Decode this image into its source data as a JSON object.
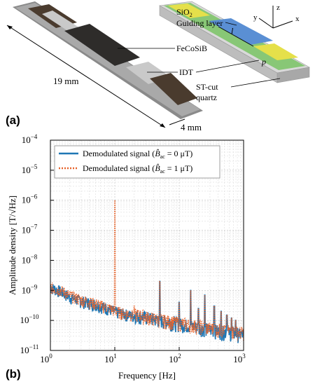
{
  "panel_a": {
    "label": "(a)",
    "callouts": {
      "sio2": "SiO",
      "sio2_sub": "2",
      "guiding": "Guiding layer",
      "fecosib": "FeCoSiB",
      "idt": "IDT",
      "stcut": "ST-cut",
      "quartz": "quartz"
    },
    "dim_length": "19 mm",
    "dim_width": "4 mm",
    "axes": {
      "y": "y",
      "z": "z",
      "x": "x"
    },
    "geom_labels": {
      "l": "l",
      "p": "p"
    },
    "colors": {
      "substrate": "#c8c8c8",
      "guiding": "#7ec46a",
      "magnetic": "#5a8fd4",
      "idt": "#e5e04a"
    }
  },
  "panel_b": {
    "label": "(b)",
    "chart_data": {
      "type": "line",
      "xlabel": "Frequency [Hz]",
      "ylabel": "Amplitude density [T/√Hz]",
      "xscale": "log",
      "yscale": "log",
      "xlim": [
        1,
        1000
      ],
      "ylim": [
        1e-11,
        0.0001
      ],
      "grid": true,
      "legend_position": "top-left",
      "x_ticks": [
        "10",
        "10",
        "10",
        "10"
      ],
      "x_tick_exps": [
        "0",
        "1",
        "2",
        "3"
      ],
      "y_ticks": [
        "10",
        "10",
        "10",
        "10",
        "10",
        "10",
        "10",
        "10"
      ],
      "y_tick_exps": [
        "−11",
        "−10",
        "−9",
        "−8",
        "−7",
        "−6",
        "−5",
        "−4"
      ],
      "series": [
        {
          "name": "Demodulated signal (B̂ac = 0 μT)",
          "legend_prefix": "Demodulated signal (",
          "legend_b": "B̂",
          "legend_sub": "ac",
          "legend_suffix": " = 0 μT)",
          "color": "#1f77b4",
          "style": "solid",
          "peaks": [
            [
              50,
              2e-09
            ],
            [
              100,
              4e-10
            ],
            [
              150,
              1e-09
            ],
            [
              200,
              2.5e-10
            ],
            [
              250,
              7e-10
            ],
            [
              350,
              3e-10
            ],
            [
              450,
              2e-10
            ],
            [
              550,
              1.5e-10
            ],
            [
              650,
              1.2e-10
            ],
            [
              750,
              1e-10
            ]
          ],
          "baseline": [
            [
              1,
              1.3e-09
            ],
            [
              1.5,
              9e-10
            ],
            [
              2,
              6e-10
            ],
            [
              3,
              4.5e-10
            ],
            [
              5,
              3.5e-10
            ],
            [
              8,
              2.5e-10
            ],
            [
              10,
              2e-10
            ],
            [
              20,
              1.4e-10
            ],
            [
              40,
              1e-10
            ],
            [
              100,
              7e-11
            ],
            [
              300,
              4.5e-11
            ],
            [
              1000,
              3e-11
            ]
          ]
        },
        {
          "name": "Demodulated signal (B̂ac = 1 μT)",
          "legend_prefix": "Demodulated signal (",
          "legend_b": "B̂",
          "legend_sub": "ac",
          "legend_suffix": " = 1 μT)",
          "color": "#e8632b",
          "style": "dotted",
          "peaks": [
            [
              10,
              1e-06
            ],
            [
              20,
              3e-10
            ],
            [
              50,
              2e-09
            ],
            [
              100,
              4e-10
            ],
            [
              150,
              1e-09
            ],
            [
              200,
              2.5e-10
            ],
            [
              250,
              7e-10
            ],
            [
              350,
              3e-10
            ],
            [
              450,
              2e-10
            ],
            [
              550,
              1.5e-10
            ],
            [
              650,
              1.2e-10
            ],
            [
              750,
              1e-10
            ]
          ],
          "baseline": [
            [
              1,
              1.3e-09
            ],
            [
              1.5,
              1e-09
            ],
            [
              2,
              7e-10
            ],
            [
              3,
              5e-10
            ],
            [
              5,
              3.7e-10
            ],
            [
              8,
              2.7e-10
            ],
            [
              10,
              2.1e-10
            ],
            [
              20,
              1.5e-10
            ],
            [
              40,
              1.05e-10
            ],
            [
              100,
              7.5e-11
            ],
            [
              300,
              5e-11
            ],
            [
              1000,
              3.5e-11
            ]
          ]
        }
      ]
    }
  }
}
